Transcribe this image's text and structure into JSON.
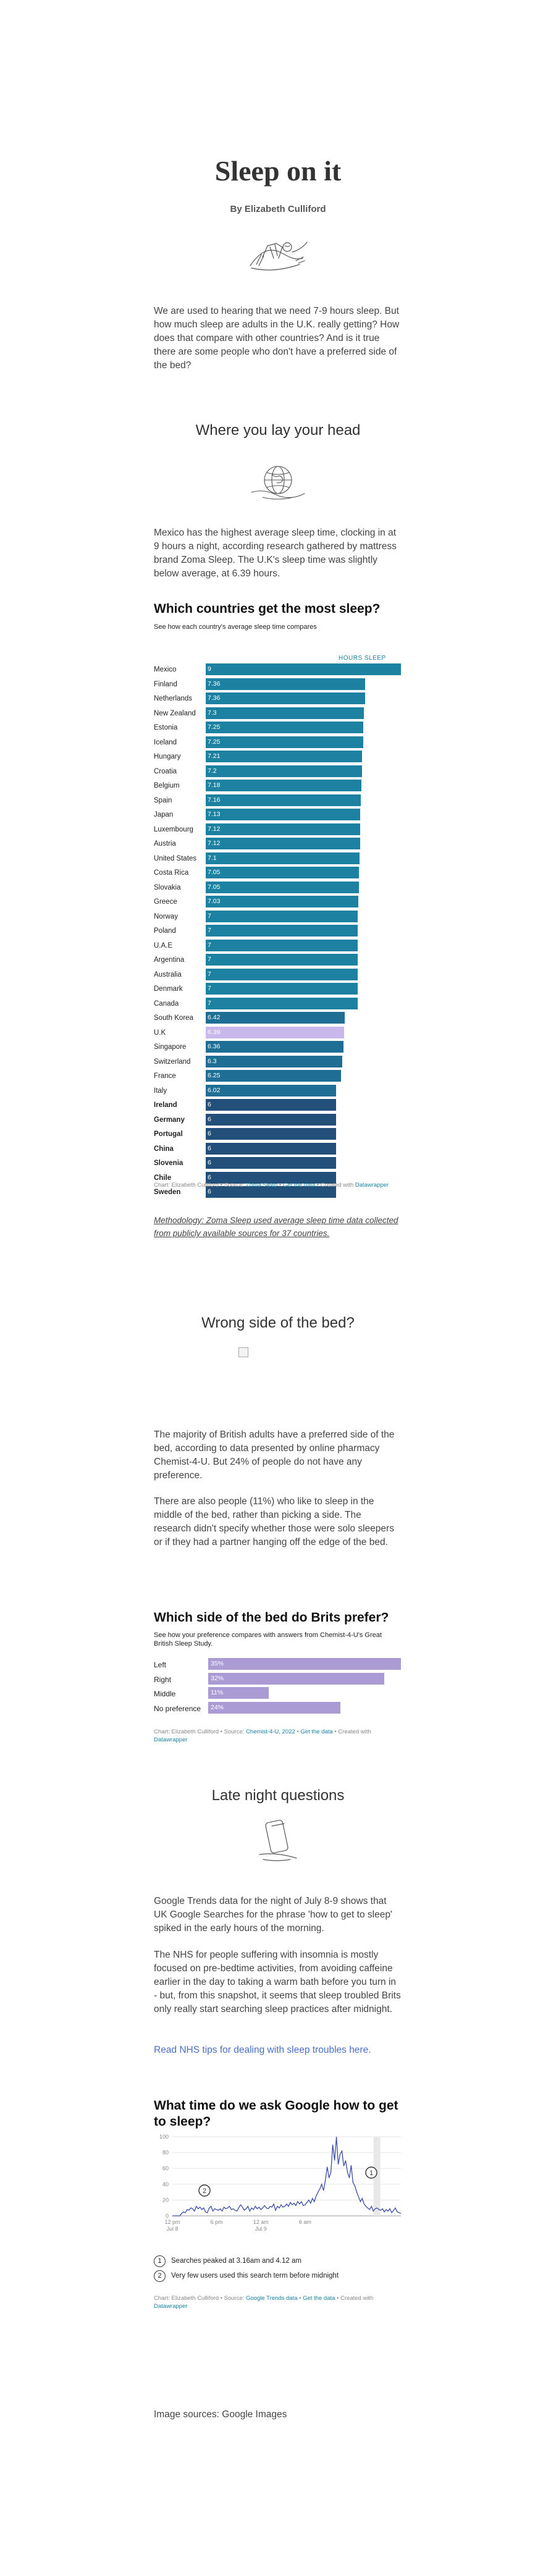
{
  "header": {
    "title": "Sleep on it",
    "byline": "By Elizabeth Culliford",
    "illustration_icon": "sleeping-figure-icon"
  },
  "intro": {
    "paragraph": "We are used to hearing that we need 7-9 hours sleep. But how much sleep are adults in the U.K. really getting? How does that compare with other countries? And is it true there are some people who don't have a preferred side of the bed?"
  },
  "section_head": {
    "title": "Where you lay your head",
    "illustration_icon": "globe-icon",
    "paragraph": "Mexico has the highest average sleep time, clocking in at 9 hours a night, according research gathered by mattress brand Zoma Sleep. The U.K's sleep time was slightly below average, at 6.39 hours."
  },
  "countries_chart": {
    "title": "Which countries get the most sleep?",
    "subtitle": "See how each country's average sleep time compares",
    "column_header": "HOURS SLEEP",
    "credit_prefix": "Chart: Elizabeth Culliford • Source: ",
    "credit_source": "Zoma Sleep",
    "credit_sep": " • ",
    "credit_get": "Get the data",
    "credit_created": " • Created with ",
    "credit_tool": "Datawrapper",
    "methodology": "Methodology: Zoma Sleep used average sleep time data collected from publicly available sources for 37 countries."
  },
  "chart_data": [
    {
      "type": "bar",
      "orientation": "horizontal",
      "title": "Which countries get the most sleep?",
      "subtitle": "See how each country's average sleep time compares",
      "value_label": "HOURS SLEEP",
      "xlim": [
        0,
        9
      ],
      "categories": [
        "Mexico",
        "Finland",
        "Netherlands",
        "New Zealand",
        "Estonia",
        "Iceland",
        "Hungary",
        "Croatia",
        "Belgium",
        "Spain",
        "Japan",
        "Luxembourg",
        "Austria",
        "United States",
        "Costa Rica",
        "Slovakia",
        "Greece",
        "Norway",
        "Poland",
        "U.A.E",
        "Argentina",
        "Australia",
        "Denmark",
        "Canada",
        "South Korea",
        "U.K",
        "Singapore",
        "Switzerland",
        "France",
        "Italy",
        "Ireland",
        "Germany",
        "Portugal",
        "China",
        "Slovenia",
        "Chile",
        "Sweden"
      ],
      "values": [
        9,
        7.36,
        7.36,
        7.3,
        7.25,
        7.25,
        7.21,
        7.2,
        7.18,
        7.16,
        7.13,
        7.12,
        7.12,
        7.1,
        7.05,
        7.05,
        7.03,
        7,
        7,
        7,
        7,
        7,
        7,
        7,
        6.42,
        6.39,
        6.36,
        6.3,
        6.25,
        6.02,
        6,
        6,
        6,
        6,
        6,
        6,
        6
      ],
      "display_values": [
        "9",
        "7.36",
        "7.36",
        "7.3",
        "7.25",
        "7.25",
        "7.21",
        "7.2",
        "7.18",
        "7.16",
        "7.13",
        "7.12",
        "7.12",
        "7.1",
        "7.05",
        "7.05",
        "7.03",
        "7",
        "7",
        "7",
        "7",
        "7",
        "7",
        "7",
        "6.42",
        "6.39",
        "6.36",
        "6.3",
        "6.25",
        "6.02",
        "6",
        "6",
        "6",
        "6",
        "6",
        "6",
        "6"
      ],
      "bold_categories": [
        "Ireland",
        "Germany",
        "Portugal",
        "China",
        "Slovenia",
        "Chile",
        "Sweden"
      ],
      "colors": {
        "high": "#1d81a2",
        "mid": "#1f6e95",
        "low": "#23507a",
        "highlight": "#c9b8ec"
      },
      "highlight": "U.K"
    },
    {
      "type": "bar",
      "orientation": "horizontal",
      "title": "Which side of the bed do Brits prefer?",
      "subtitle": "See how your preference compares with answers from Chemist-4-U's Great British Sleep Study.",
      "xlim": [
        0,
        35
      ],
      "categories": [
        "Left",
        "Right",
        "Middle",
        "No preference"
      ],
      "values": [
        35,
        32,
        11,
        24
      ],
      "display_values": [
        "35%",
        "32%",
        "11%",
        "24%"
      ],
      "color": "#ab9bd5"
    },
    {
      "type": "line",
      "title": "What time do we ask Google how to get to sleep?",
      "ylim": [
        0,
        100
      ],
      "y_ticks": [
        0,
        20,
        40,
        60,
        80,
        100
      ],
      "x_ticks": [
        "12 pm\nJul 8",
        "6 pm",
        "12 am\nJul 9",
        "6 am"
      ],
      "x_range_hours": [
        0,
        31
      ],
      "highlight_hours": [
        27.27,
        28.2
      ],
      "series": [
        {
          "values": [
            0,
            0,
            0,
            0,
            0,
            3,
            5,
            4,
            8,
            7,
            10,
            9,
            6,
            12,
            9,
            11,
            8,
            10,
            5,
            4,
            10,
            12,
            6,
            9,
            8,
            7,
            9,
            6,
            11,
            9,
            10,
            12,
            8,
            9,
            7,
            6,
            10,
            14,
            11,
            7,
            9,
            12,
            6,
            10,
            8,
            12,
            9,
            11,
            8,
            10,
            13,
            10,
            9,
            12,
            11,
            15,
            7,
            12,
            10,
            14,
            11,
            12,
            15,
            12,
            17,
            14,
            16,
            13,
            18,
            15,
            18,
            13,
            14,
            17,
            20,
            16,
            22,
            18,
            25,
            30,
            34,
            40,
            32,
            45,
            62,
            48,
            55,
            90,
            70,
            100,
            65,
            78,
            82,
            63,
            70,
            55,
            48,
            64,
            42,
            38,
            30,
            24,
            18,
            22,
            15,
            12,
            10,
            8,
            12,
            6,
            9,
            10,
            8,
            7,
            9,
            5,
            8,
            6,
            9,
            4,
            7,
            10,
            5,
            4,
            3
          ],
          "color": "#3c4ea7"
        }
      ],
      "annotations": [
        {
          "marker": "1",
          "text": "Searches peaked at 3.16am and 4.12 am"
        },
        {
          "marker": "2",
          "text": "Very few users used this search term before midnight"
        }
      ]
    }
  ],
  "section_bed": {
    "title": "Wrong side of the bed?",
    "paragraph1": "The majority of British adults have a preferred side of the bed, according to data presented by online pharmacy Chemist-4-U. But 24% of people do not have any preference.",
    "paragraph2": "There are also people (11%) who like to sleep in the middle of the bed, rather than picking a side. The research didn't specify whether those were solo sleepers or if they had a partner hanging off the edge of the bed."
  },
  "side_chart": {
    "title": "Which side of the bed do Brits prefer?",
    "subtitle": "See how your preference compares with answers from Chemist-4-U's Great British Sleep Study.",
    "credit_prefix": "Chart: Elizabeth Culliford • Source: ",
    "credit_source": "Chemist-4-U, 2022",
    "credit_sep": " • ",
    "credit_get": "Get the data",
    "credit_created": " • Created with ",
    "credit_tool": "Datawrapper"
  },
  "section_late": {
    "title": "Late night questions",
    "illustration_icon": "phone-icon",
    "paragraph1": "Google Trends data for the night of July 8-9 shows that UK Google Searches for the phrase 'how to get to sleep' spiked in the early hours of the morning.",
    "paragraph2": "The NHS for people suffering with insomnia is mostly focused on pre-bedtime activities, from avoiding caffeine earlier in the day to taking a warm bath before you turn in - but, from this snapshot, it seems that sleep troubled Brits only really start searching sleep practices after midnight.",
    "link": "Read NHS tips for dealing with sleep troubles here."
  },
  "google_chart": {
    "title": "What time do we ask Google how to get to sleep?",
    "y_tick_labels": [
      "100",
      "80",
      "60",
      "40",
      "20",
      "0"
    ],
    "x_tick_labels": [
      {
        "line1": "12 pm",
        "line2": "Jul 8"
      },
      {
        "line1": "6 pm",
        "line2": ""
      },
      {
        "line1": "12 am",
        "line2": "Jul 9"
      },
      {
        "line1": "6 am",
        "line2": ""
      }
    ],
    "marker1": "1",
    "marker2": "2",
    "legend1": "Searches peaked at 3.16am and 4.12 am",
    "legend2": "Very few users used this search term before midnight",
    "credit_prefix": "Chart: Elizabeth Culliford • Source: ",
    "credit_source": "Google Trends data",
    "credit_sep": " • ",
    "credit_get": "Get the data",
    "credit_created": " • Created with ",
    "credit_tool": "Datawrapper"
  },
  "footer": {
    "image_sources": "Image sources: Google Images"
  }
}
